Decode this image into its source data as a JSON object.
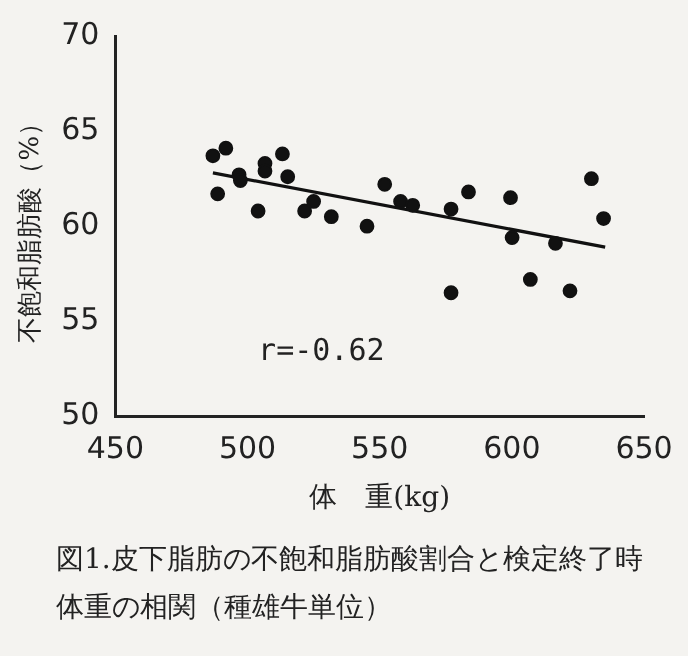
{
  "chart_data": {
    "type": "scatter",
    "xlabel": "体　重(kg)",
    "ylabel": "不飽和脂肪酸（%）",
    "annotations": [
      "r=-0.62",
      "図1.皮下脂肪の不飽和脂肪酸割合と検定終了時体重の相関（種雄牛単位）"
    ],
    "xlim": [
      450,
      650
    ],
    "xticks": [
      450,
      500,
      550,
      600,
      650
    ],
    "ylim": [
      50,
      70
    ],
    "yticks": [
      50,
      55,
      60,
      65,
      70
    ],
    "grid": false,
    "legend": false,
    "series": [
      {
        "marker": "circle",
        "color": "#111111",
        "x": [
          486.9,
          491.8,
          488.7,
          496.8,
          497.3,
          504.0,
          506.6,
          506.6,
          513.2,
          515.2,
          521.6,
          525.0,
          531.7,
          545.2,
          551.9,
          557.9,
          562.5,
          577.0,
          577.0,
          583.6,
          599.5,
          600.1,
          607.0,
          616.5,
          622.0,
          630.1,
          634.7
        ],
        "values": [
          63.7,
          64.1,
          61.7,
          62.7,
          62.4,
          60.8,
          63.3,
          62.9,
          63.8,
          62.6,
          60.8,
          61.3,
          60.5,
          60.0,
          62.2,
          61.3,
          61.1,
          60.9,
          56.5,
          61.8,
          61.5,
          59.4,
          57.2,
          59.1,
          56.6,
          62.5,
          60.4
        ]
      },
      {
        "type": "line",
        "color": "#111111",
        "x": [
          486.9,
          635.3
        ],
        "values": [
          62.8,
          58.9
        ]
      }
    ]
  }
}
